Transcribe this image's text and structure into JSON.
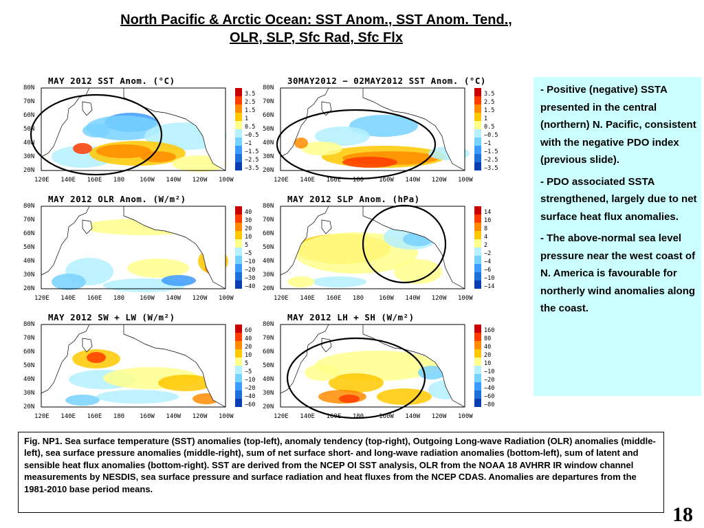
{
  "title_line1": "North Pacific & Arctic Ocean: SST Anom., SST Anom. Tend.,",
  "title_line2": "OLR, SLP, Sfc Rad, Sfc Flx",
  "lat_labels": [
    "80N",
    "70N",
    "60N",
    "50N",
    "40N",
    "30N",
    "20N"
  ],
  "lon_labels": [
    "120E",
    "140E",
    "160E",
    "180",
    "160W",
    "140W",
    "120W",
    "100W"
  ],
  "panels": [
    {
      "title": "MAY 2012 SST Anom. (°C)",
      "legend": [
        "3.5",
        "2.5",
        "1.5",
        "1",
        "0.5",
        "−0.5",
        "−1",
        "−1.5",
        "−2.5",
        "−3.5"
      ]
    },
    {
      "title": "30MAY2012 − 02MAY2012 SST Anom. (°C)",
      "legend": [
        "3.5",
        "2.5",
        "1.5",
        "1",
        "0.5",
        "−0.5",
        "−1",
        "−1.5",
        "−2.5",
        "−3.5"
      ]
    },
    {
      "title": "MAY 2012 OLR Anom. (W/m²)",
      "legend": [
        "40",
        "30",
        "20",
        "10",
        "5",
        "−5",
        "−10",
        "−20",
        "−30",
        "−40"
      ]
    },
    {
      "title": "MAY 2012 SLP Anom. (hPa)",
      "legend": [
        "14",
        "10",
        "8",
        "4",
        "2",
        "−2",
        "−4",
        "−6",
        "−10",
        "−14"
      ]
    },
    {
      "title": "MAY 2012 SW + LW (W/m²)",
      "legend": [
        "60",
        "40",
        "20",
        "10",
        "5",
        "−5",
        "−10",
        "−20",
        "−40",
        "−60"
      ]
    },
    {
      "title": "MAY 2012 LH + SH (W/m²)",
      "legend": [
        "160",
        "80",
        "40",
        "20",
        "10",
        "−10",
        "−20",
        "−40",
        "−60",
        "−80"
      ]
    }
  ],
  "legend_colors": [
    "#c80000",
    "#ff3c00",
    "#ff8c00",
    "#ffc800",
    "#ffff8c",
    "#b4f0ff",
    "#78d2ff",
    "#3c9bff",
    "#1e6edc",
    "#0a3cb4"
  ],
  "notes": [
    {
      "dash": "- ",
      "text": "Positive (negative) SSTA presented in the central (northern) N. Pacific, consistent with the negative PDO index (previous slide)."
    },
    {
      "dash": "- ",
      "text": "PDO associated SSTA strengthened, largely due to net surface heat flux anomalies."
    },
    {
      "dash": "- ",
      "text": "The above-normal sea level pressure near the west coast of N. America is favourable for northerly wind anomalies along the coast."
    }
  ],
  "caption": "Fig. NP1. Sea surface temperature (SST) anomalies (top-left), anomaly tendency (top-right), Outgoing Long-wave Radiation (OLR) anomalies (middle-left), sea surface pressure anomalies (middle-right), sum of net surface short- and long-wave radiation anomalies (bottom-left), sum of latent and sensible heat flux anomalies (bottom-right). SST are derived from the NCEP OI SST analysis, OLR from the NOAA 18 AVHRR IR window channel measurements by NESDIS, sea surface pressure and surface radiation and heat fluxes from the NCEP CDAS. Anomalies are departures from the 1981-2010  base period means.",
  "page_number": "18"
}
